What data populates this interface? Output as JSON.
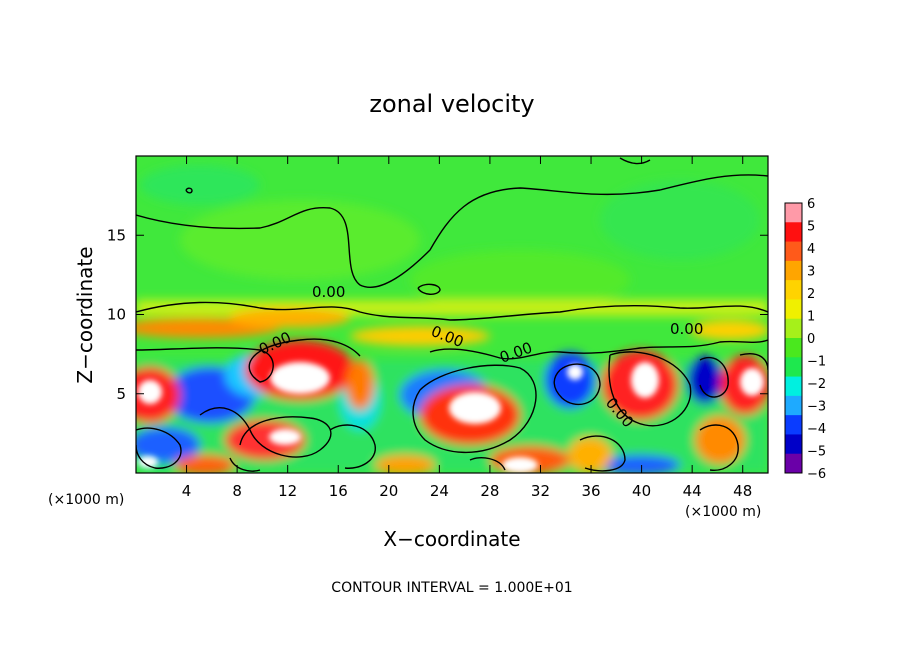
{
  "chart_data": {
    "type": "heatmap",
    "title": "zonal velocity",
    "xlabel": "X−coordinate",
    "ylabel": "Z−coordinate",
    "x_unit_left": "(×1000 m)",
    "x_unit_right": "(×1000 m)",
    "xlim": [
      0,
      50
    ],
    "ylim": [
      0,
      20
    ],
    "x_ticks": [
      4,
      8,
      12,
      16,
      20,
      24,
      28,
      32,
      36,
      40,
      44,
      48
    ],
    "x_tick_labels": [
      "4",
      "8",
      "12",
      "16",
      "20",
      "24",
      "28",
      "32",
      "36",
      "40",
      "44",
      "48"
    ],
    "y_ticks": [
      5,
      10,
      15
    ],
    "y_tick_labels": [
      "5",
      "10",
      "15"
    ],
    "contour_labels": [
      "0.00",
      "0.00",
      "0.00",
      "0.00",
      "0.00",
      "0.00"
    ],
    "footnote": "CONTOUR INTERVAL = 1.000E+01",
    "colorbar": {
      "min": -6,
      "max": 6,
      "tick_labels": [
        "6",
        "5",
        "4",
        "3",
        "2",
        "1",
        "0",
        "−1",
        "−2",
        "−3",
        "−4",
        "−5",
        "−6"
      ],
      "colors": [
        "#ff9aa8",
        "#ff1010",
        "#ff5a1a",
        "#ffa500",
        "#ffd300",
        "#f0f000",
        "#a6f01a",
        "#4ae81e",
        "#1ee84e",
        "#00f0e0",
        "#1eaaff",
        "#0a3cff",
        "#0000c8",
        "#6a00a8"
      ]
    },
    "grid": false
  }
}
